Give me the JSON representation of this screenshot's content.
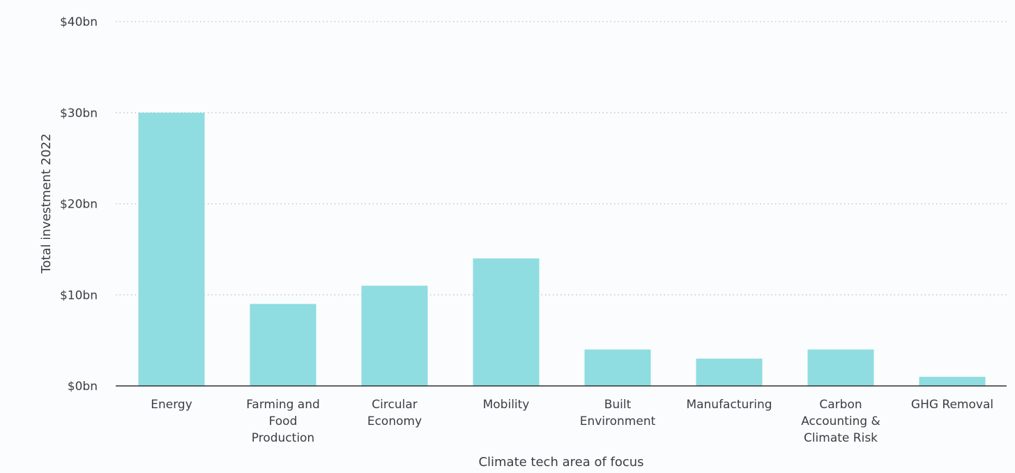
{
  "chart_data": {
    "type": "bar",
    "title": "",
    "xlabel": "Climate tech area of focus",
    "ylabel": "Total investment 2022",
    "ylim": [
      0,
      40
    ],
    "yticks": [
      0,
      10,
      20,
      30,
      40
    ],
    "ytick_labels": [
      "$0bn",
      "$10bn",
      "$20bn",
      "$30bn",
      "$40bn"
    ],
    "grid": true,
    "categories": [
      "Energy",
      "Farming and Food Production",
      "Circular Economy",
      "Mobility",
      "Built Environment",
      "Manufacturing",
      "Carbon Accounting & Climate Risk",
      "GHG Removal"
    ],
    "category_lines": [
      [
        "Energy"
      ],
      [
        "Farming and",
        "Food",
        "Production"
      ],
      [
        "Circular",
        "Economy"
      ],
      [
        "Mobility"
      ],
      [
        "Built",
        "Environment"
      ],
      [
        "Manufacturing"
      ],
      [
        "Carbon",
        "Accounting &",
        "Climate Risk"
      ],
      [
        "GHG Removal"
      ]
    ],
    "values": [
      30,
      9,
      11,
      14,
      4,
      3,
      4,
      1
    ],
    "colors": {
      "bar": "#8fdde0",
      "baseline": "#2d2f33",
      "grid": "#b9bcc1",
      "text": "#3a3d42"
    }
  }
}
